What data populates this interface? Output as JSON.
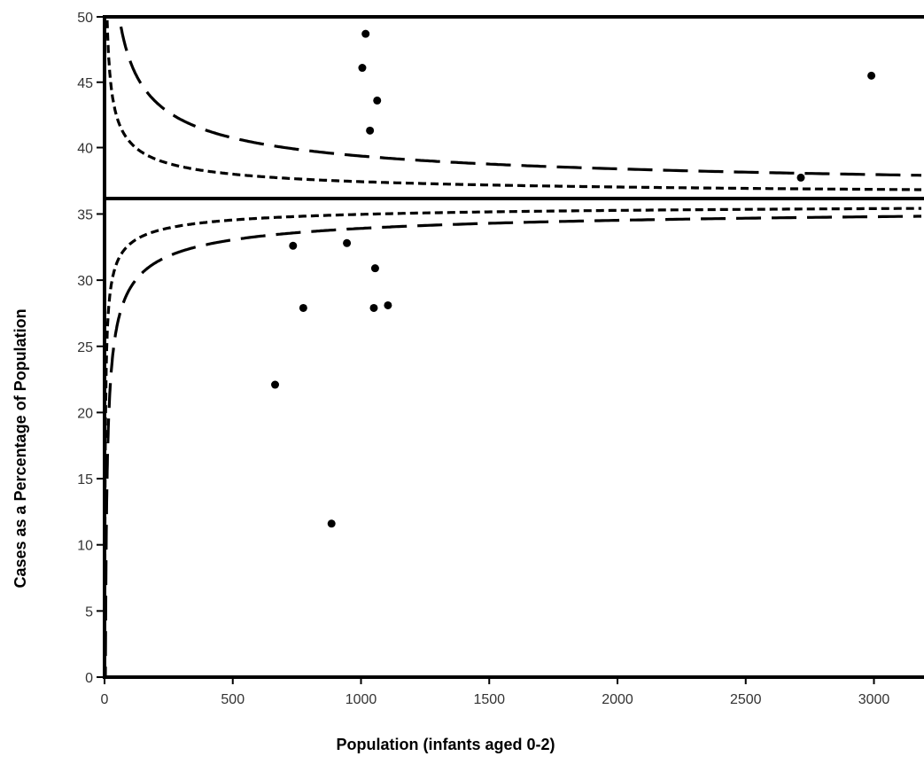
{
  "chart_data": {
    "type": "scatter",
    "title": "",
    "xlabel": "Population (infants aged 0-2)",
    "ylabel": "Cases as a Percentage of Population",
    "xlim": [
      0,
      3200
    ],
    "ylim_lower": [
      0,
      36.2
    ],
    "ylim_upper": [
      36.2,
      50
    ],
    "axis_break_at": 36.2,
    "x_ticks": [
      0,
      500,
      1000,
      1500,
      2000,
      2500,
      3000
    ],
    "y_ticks_lower": [
      0,
      5,
      10,
      15,
      20,
      25,
      30,
      35
    ],
    "y_ticks_upper": [
      40,
      45,
      50
    ],
    "grid": false,
    "points": {
      "x": [
        1018,
        1005,
        1063,
        1035,
        2990,
        2715,
        735,
        945,
        1055,
        775,
        1050,
        1105,
        665,
        885
      ],
      "y": [
        48.7,
        46.1,
        43.6,
        41.3,
        45.5,
        37.7,
        32.6,
        32.8,
        30.9,
        27.9,
        27.9,
        28.1,
        22.1,
        11.6
      ]
    },
    "curves": [
      {
        "style": "short-dash",
        "bound": "upper",
        "center": 36,
        "k": 44
      },
      {
        "style": "long-dash",
        "bound": "upper",
        "center": 36,
        "k": 106
      },
      {
        "style": "short-dash",
        "bound": "lower",
        "center": 36,
        "k": 32.5
      },
      {
        "style": "long-dash",
        "bound": "lower",
        "center": 36,
        "k": 66
      }
    ]
  }
}
